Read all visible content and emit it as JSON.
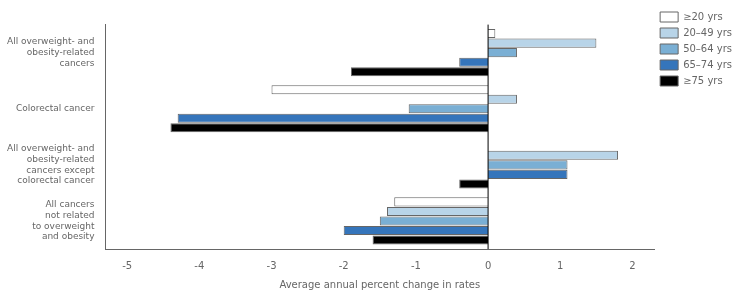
{
  "chart_data": {
    "type": "bar",
    "orientation": "horizontal",
    "categories": [
      "All overweight- and\nobesity-related\ncancers",
      "Colorectal cancer",
      "All overweight- and\nobesity-related\ncancers except\ncolorectal cancer",
      "All cancers\nnot related\nto overweight\nand obesity"
    ],
    "series": [
      {
        "name": "≥20 yrs",
        "color": "#ffffff",
        "values": [
          0.1,
          -3.0,
          0.0,
          -1.3
        ]
      },
      {
        "name": "20–49 yrs",
        "color": "#b8d4e8",
        "values": [
          1.5,
          0.4,
          1.8,
          -1.4
        ]
      },
      {
        "name": "50–64 yrs",
        "color": "#7aafd4",
        "values": [
          0.4,
          -1.1,
          1.1,
          -1.5
        ]
      },
      {
        "name": "65–74 yrs",
        "color": "#3575bb",
        "values": [
          -0.4,
          -4.3,
          1.1,
          -2.0
        ]
      },
      {
        "name": "≥75 yrs",
        "color": "#000000",
        "values": [
          -1.9,
          -4.4,
          -0.4,
          -1.6
        ]
      }
    ],
    "xlabel": "Average annual percent change in rates",
    "xlim": [
      -5.3,
      2.3
    ],
    "xticks": [
      -5,
      -4,
      -3,
      -2,
      -1,
      0,
      1,
      2
    ],
    "grid": false,
    "legend": "upper right"
  }
}
